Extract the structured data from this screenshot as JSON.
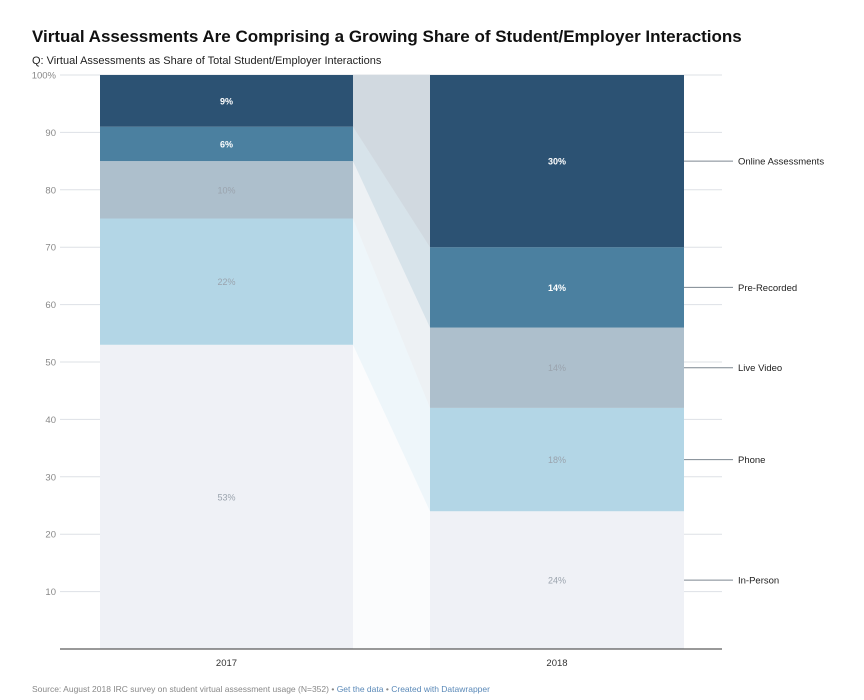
{
  "title": "Virtual Assessments Are Comprising a Growing Share of Student/Employer Interactions",
  "subtitle": "Q: Virtual Assessments as Share of Total Student/Employer Interactions",
  "footer": {
    "source": "Source: August 2018 IRC survey on student virtual assessment usage (N=352)",
    "separator": "•",
    "get_data": "Get the data",
    "created_with": "Created with Datawrapper"
  },
  "colors": {
    "In-Person": "#eff1f6",
    "Phone": "#b3d6e6",
    "Live Video": "#adbfcc",
    "Pre-Recorded": "#4b80a0",
    "Online Assessments": "#2c5273",
    "grid": "#dde1e6",
    "axis_text": "#888888",
    "connector": "#dfe4ea"
  },
  "chart_data": {
    "type": "bar",
    "stacked": true,
    "categories": [
      "2017",
      "2018"
    ],
    "series": [
      {
        "name": "In-Person",
        "values": [
          53,
          24
        ],
        "labels": [
          "53%",
          "24%"
        ]
      },
      {
        "name": "Phone",
        "values": [
          22,
          18
        ],
        "labels": [
          "22%",
          "18%"
        ]
      },
      {
        "name": "Live Video",
        "values": [
          10,
          14
        ],
        "labels": [
          "10%",
          "14%"
        ]
      },
      {
        "name": "Pre-Recorded",
        "values": [
          6,
          14
        ],
        "labels": [
          "6%",
          "14%"
        ]
      },
      {
        "name": "Online Assessments",
        "values": [
          9,
          30
        ],
        "labels": [
          "9%",
          "30%"
        ]
      }
    ],
    "ylim": [
      0,
      100
    ],
    "yticks": [
      "10",
      "20",
      "30",
      "40",
      "50",
      "60",
      "70",
      "80",
      "90",
      "100%"
    ],
    "ytick_values": [
      10,
      20,
      30,
      40,
      50,
      60,
      70,
      80,
      90,
      100
    ],
    "legend_placement": "right"
  }
}
